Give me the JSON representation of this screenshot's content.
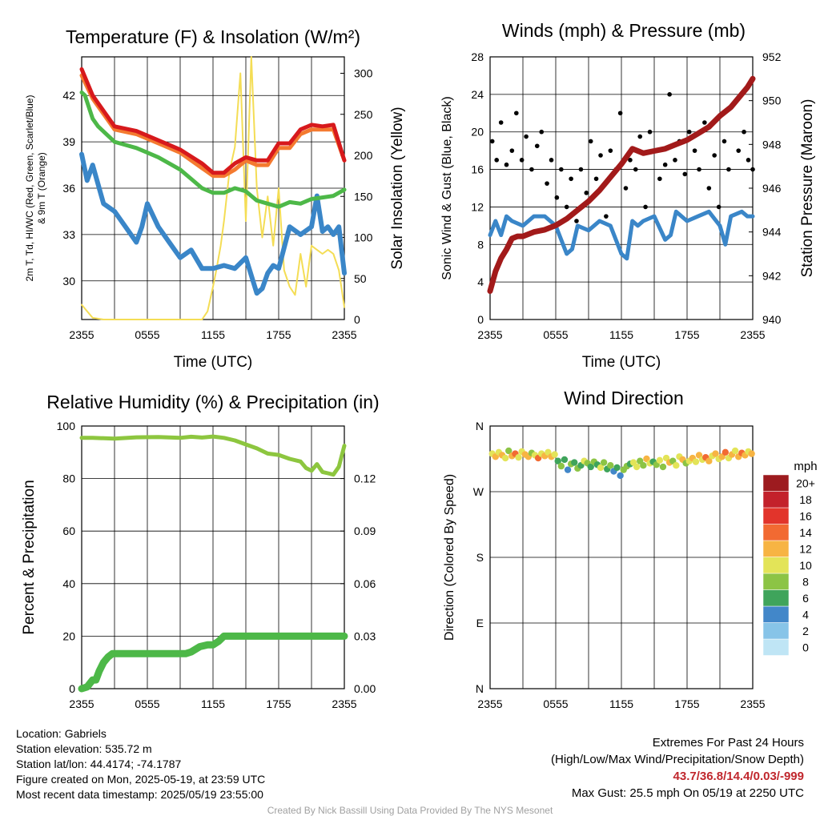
{
  "colors": {
    "red": "#d7191c",
    "orange": "#f47a30",
    "green": "#4db848",
    "blue": "#3a86c8",
    "yellow": "#f4dd55",
    "maroon": "#a21a1a",
    "black": "#000000",
    "rh": "#8dc63f",
    "precip": "#4db848"
  },
  "time_ticks": [
    "2355",
    "0555",
    "1155",
    "1755",
    "2355"
  ],
  "charts": {
    "temperature": {
      "type": "line",
      "title": "Temperature (F) & Insolation (W/m²)",
      "xlabel": "Time (UTC)",
      "ylabel_line1": "2m T, Td, HI/WC (Red, Green, Scarlet/Blue)",
      "ylabel_line2": "& 9m T (Orange)",
      "ylabel_right": "Solar Insolation (Yellow)",
      "ylim": [
        27.5,
        44.5
      ],
      "yticks": [
        30,
        33,
        36,
        39,
        42
      ],
      "ylim_right": [
        0,
        320
      ],
      "yticks_right": [
        0,
        50,
        100,
        150,
        200,
        250,
        300
      ],
      "series": [
        {
          "color": "yellow",
          "axis": "right",
          "x": [
            0,
            1,
            2,
            4,
            8,
            10,
            11,
            11.5,
            12,
            12.3,
            12.7,
            13,
            13.5,
            14,
            14.5,
            15,
            15.5,
            16,
            16.5,
            17,
            17.5,
            18,
            18.5,
            19,
            19.5,
            20,
            20.5,
            21,
            21.5,
            22,
            22.5,
            23,
            23.5,
            24
          ],
          "y": [
            18,
            2,
            0,
            0,
            0,
            0,
            0,
            10,
            40,
            60,
            90,
            120,
            180,
            210,
            300,
            120,
            320,
            160,
            100,
            150,
            90,
            160,
            60,
            40,
            30,
            80,
            40,
            90,
            85,
            80,
            85,
            80,
            60,
            15
          ]
        },
        {
          "color": "blue",
          "axis": "left",
          "x": [
            0,
            0.5,
            1,
            2,
            3,
            4,
            5,
            5.5,
            6,
            7,
            8,
            9,
            10,
            11,
            12,
            13,
            14,
            15,
            16,
            16.5,
            17,
            17.5,
            18,
            19,
            20,
            21,
            21.5,
            22,
            22.5,
            23,
            23.5,
            24
          ],
          "y": [
            38.2,
            36.5,
            37.5,
            35,
            34.5,
            33.5,
            32.5,
            33.5,
            35,
            33.5,
            32.5,
            31.5,
            32,
            30.8,
            30.8,
            31,
            30.8,
            31.5,
            29.2,
            29.5,
            30.5,
            31,
            30.8,
            33.5,
            33,
            33.5,
            35.5,
            33.2,
            33.5,
            33,
            33.5,
            30.5
          ]
        },
        {
          "color": "green",
          "axis": "left",
          "x": [
            0,
            0.3,
            1,
            1.5,
            3,
            4,
            5,
            6,
            7,
            8,
            9,
            10,
            11,
            12,
            13,
            14,
            15,
            16,
            17,
            18,
            19,
            20,
            21,
            22,
            23,
            24
          ],
          "y": [
            42.2,
            42.0,
            40.5,
            40.0,
            39.0,
            38.8,
            38.6,
            38.3,
            38.0,
            37.6,
            37.2,
            36.6,
            36.0,
            35.7,
            35.7,
            36.0,
            35.8,
            35.2,
            35.0,
            34.8,
            35.1,
            35.0,
            35.3,
            35.4,
            35.5,
            35.9
          ]
        },
        {
          "color": "orange",
          "axis": "left",
          "x": [
            0,
            1,
            3,
            5,
            7,
            9,
            11,
            12,
            13,
            14,
            15,
            16,
            17,
            18,
            19,
            20,
            21,
            22,
            23,
            24
          ],
          "y": [
            43.3,
            41.8,
            39.8,
            39.5,
            38.9,
            38.3,
            37.3,
            36.8,
            36.8,
            37.2,
            37.8,
            37.5,
            37.5,
            38.6,
            38.6,
            39.5,
            39.8,
            39.8,
            39.8,
            37.8
          ]
        },
        {
          "color": "red",
          "axis": "left",
          "x": [
            0,
            1,
            3,
            5,
            7,
            9,
            11,
            12,
            13,
            14,
            15,
            16,
            17,
            18,
            19,
            20,
            21,
            22,
            23,
            24
          ],
          "y": [
            43.7,
            42.0,
            40.0,
            39.7,
            39.1,
            38.5,
            37.6,
            37.0,
            37.0,
            37.6,
            38.0,
            37.8,
            37.8,
            38.9,
            38.9,
            39.8,
            40.1,
            40.0,
            40.1,
            37.8
          ]
        }
      ]
    },
    "winds": {
      "type": "scatter",
      "title": "Winds (mph) & Pressure (mb)",
      "xlabel": "Time (UTC)",
      "ylabel": "Sonic Wind & Gust (Blue, Black)",
      "ylabel_right": "Station Pressure (Maroon)",
      "ylim": [
        0,
        28
      ],
      "yticks": [
        0,
        4,
        8,
        12,
        16,
        20,
        24,
        28
      ],
      "ylim_right": [
        940,
        952
      ],
      "yticks_right": [
        940,
        942,
        944,
        946,
        948,
        950,
        952
      ],
      "wind": {
        "x": [
          0,
          0.5,
          1,
          1.5,
          2,
          3,
          4,
          5,
          6,
          7,
          7.5,
          8,
          9,
          10,
          11,
          12,
          12.5,
          13,
          13.5,
          14,
          15,
          16,
          16.5,
          17,
          18,
          19,
          20,
          21,
          21.5,
          22,
          23,
          23.5,
          24
        ],
        "y": [
          9,
          10.5,
          9,
          11,
          10.5,
          10,
          11,
          11,
          10,
          7,
          7.5,
          10,
          9.5,
          10.5,
          10,
          7,
          6.5,
          10.5,
          10,
          10.5,
          11,
          8.5,
          9,
          11.5,
          10.5,
          11,
          11.5,
          10,
          8,
          11,
          11.5,
          11,
          11
        ]
      },
      "gust": {
        "x": [
          0.2,
          0.6,
          1.0,
          1.5,
          2.0,
          2.4,
          2.9,
          3.3,
          3.8,
          4.3,
          4.7,
          5.2,
          5.6,
          6.1,
          6.5,
          7.0,
          7.4,
          7.9,
          8.3,
          8.8,
          9.2,
          9.7,
          10.1,
          10.6,
          11.0,
          11.5,
          11.9,
          12.4,
          12.8,
          13.3,
          13.7,
          14.2,
          14.6,
          15.1,
          15.5,
          16.0,
          16.4,
          16.9,
          17.3,
          17.8,
          18.2,
          18.7,
          19.1,
          19.6,
          20.0,
          20.5,
          20.9,
          21.4,
          21.8,
          22.3,
          22.7,
          23.2,
          23.6,
          24.0
        ],
        "y": [
          19,
          17,
          21,
          16.5,
          18,
          22,
          17,
          19.5,
          16,
          18.5,
          20,
          14.5,
          17,
          13,
          16,
          12,
          15,
          10.5,
          16,
          13.5,
          19,
          15,
          17.5,
          11,
          18,
          16,
          22,
          14,
          17,
          16,
          19.5,
          12,
          20,
          18,
          15,
          16.5,
          24,
          17,
          19,
          15.5,
          20,
          18,
          16,
          21,
          14,
          17.5,
          12,
          19,
          16,
          23,
          18,
          20,
          17,
          16
        ]
      },
      "pressure": {
        "x": [
          0,
          0.5,
          1,
          1.5,
          2,
          2.5,
          3,
          4,
          5,
          6,
          7,
          8,
          9,
          10,
          11,
          12,
          13,
          14,
          15,
          16,
          17,
          18,
          19,
          20,
          21,
          22,
          23,
          23.5,
          24
        ],
        "y": [
          941.3,
          942.2,
          942.8,
          943.2,
          943.7,
          943.8,
          943.8,
          944.0,
          944.1,
          944.3,
          944.6,
          945.0,
          945.4,
          945.9,
          946.5,
          947.1,
          947.8,
          947.6,
          947.7,
          947.8,
          948.0,
          948.2,
          948.5,
          948.8,
          949.3,
          949.7,
          950.3,
          950.6,
          951.0
        ]
      }
    },
    "humidity": {
      "type": "line",
      "title": "Relative Humidity (%) & Precipitation (in)",
      "ylabel": "Percent & Precipitation",
      "ylim": [
        0,
        100
      ],
      "yticks": [
        0,
        20,
        40,
        60,
        80,
        100
      ],
      "ylim_right": [
        0,
        0.15
      ],
      "yticks_right": [
        "0.00",
        "0.03",
        "0.06",
        "0.09",
        "0.12"
      ],
      "rh": {
        "x": [
          0,
          1,
          3,
          5,
          7,
          9,
          10,
          11,
          12,
          13,
          14,
          15,
          16,
          17,
          18,
          19,
          20,
          20.5,
          21,
          21.5,
          22,
          22.5,
          23,
          23.5,
          24
        ],
        "y": [
          95.5,
          95.5,
          95.2,
          95.7,
          95.8,
          95.5,
          95.9,
          95.6,
          96,
          95.5,
          94.5,
          93,
          91.5,
          89.5,
          89,
          87.5,
          86.5,
          84,
          83,
          85.5,
          82.5,
          82,
          81.5,
          84.5,
          92.5
        ]
      },
      "precip": {
        "x": [
          0,
          0.5,
          1,
          1.3,
          1.6,
          2,
          2.4,
          2.8,
          3.2,
          4,
          6,
          8,
          9.5,
          10,
          10.8,
          11.5,
          12,
          12.5,
          13,
          14,
          16,
          18,
          20,
          22,
          24
        ],
        "y": [
          0,
          0.001,
          0.005,
          0.005,
          0.01,
          0.015,
          0.018,
          0.02,
          0.02,
          0.02,
          0.02,
          0.02,
          0.02,
          0.021,
          0.024,
          0.025,
          0.025,
          0.027,
          0.03,
          0.03,
          0.03,
          0.03,
          0.03,
          0.03,
          0.03
        ]
      }
    },
    "direction": {
      "type": "scatter",
      "title": "Wind Direction",
      "ylabel": "Direction (Colored By Speed)",
      "ylim": [
        0,
        360
      ],
      "ytick_labels": [
        "N",
        "E",
        "S",
        "W",
        "N"
      ],
      "legend_title": "mph",
      "legend_labels": [
        "0",
        "2",
        "4",
        "6",
        "8",
        "10",
        "12",
        "14",
        "16",
        "18",
        "20+"
      ],
      "legend_colors": [
        "#bfe5f5",
        "#87c4e8",
        "#4287c9",
        "#3fa45b",
        "#8cc445",
        "#e3e458",
        "#f7b443",
        "#f26a32",
        "#e2342b",
        "#c3212b",
        "#9d1b1f"
      ],
      "points": {
        "x": [
          0.2,
          0.5,
          0.8,
          1.1,
          1.4,
          1.7,
          2.0,
          2.3,
          2.6,
          2.9,
          3.2,
          3.5,
          3.8,
          4.1,
          4.4,
          4.7,
          5.0,
          5.3,
          5.6,
          5.9,
          6.2,
          6.5,
          6.8,
          7.1,
          7.4,
          7.7,
          8.0,
          8.3,
          8.6,
          8.9,
          9.2,
          9.5,
          9.8,
          10.1,
          10.4,
          10.7,
          11.0,
          11.3,
          11.6,
          11.9,
          12.2,
          12.5,
          12.8,
          13.1,
          13.4,
          13.7,
          14.0,
          14.3,
          14.6,
          14.9,
          15.2,
          15.5,
          15.8,
          16.1,
          16.4,
          16.7,
          17.0,
          17.3,
          17.6,
          17.9,
          18.2,
          18.5,
          18.8,
          19.1,
          19.4,
          19.7,
          20.0,
          20.3,
          20.6,
          20.9,
          21.2,
          21.5,
          21.8,
          22.1,
          22.4,
          22.7,
          23.0,
          23.3,
          23.6,
          23.9
        ],
        "dir": [
          322,
          318,
          324,
          320,
          316,
          326,
          319,
          322,
          317,
          325,
          321,
          318,
          323,
          320,
          316,
          322,
          319,
          324,
          318,
          321,
          312,
          305,
          314,
          300,
          308,
          310,
          302,
          306,
          312,
          309,
          304,
          311,
          307,
          303,
          310,
          301,
          306,
          298,
          303,
          292,
          300,
          305,
          308,
          310,
          304,
          312,
          306,
          315,
          309,
          311,
          307,
          313,
          304,
          316,
          310,
          312,
          306,
          318,
          314,
          309,
          312,
          316,
          311,
          320,
          314,
          317,
          312,
          319,
          322,
          315,
          318,
          324,
          316,
          321,
          326,
          318,
          323,
          320,
          325,
          322
        ],
        "speed": [
          10,
          11,
          9,
          12,
          10,
          8,
          11,
          13,
          10,
          9,
          12,
          11,
          8,
          10,
          13,
          9,
          11,
          10,
          12,
          9,
          6,
          7,
          5,
          4,
          7,
          6,
          8,
          6,
          9,
          7,
          5,
          8,
          6,
          10,
          7,
          5,
          8,
          4,
          6,
          3,
          7,
          8,
          6,
          9,
          10,
          7,
          8,
          11,
          9,
          6,
          8,
          10,
          7,
          9,
          11,
          8,
          10,
          9,
          12,
          8,
          10,
          11,
          9,
          12,
          10,
          13,
          11,
          9,
          12,
          10,
          11,
          13,
          9,
          12,
          10,
          11,
          13,
          12,
          10,
          11
        ]
      }
    }
  },
  "info": {
    "location": "Location: Gabriels",
    "elevation": "Station elevation: 535.72 m",
    "latlon": "Station lat/lon: 44.4174; -74.1787",
    "created": "Figure created on Mon, 2025-05-19, at 23:59 UTC",
    "recent": "Most recent data timestamp: 2025/05/19 23:55:00"
  },
  "extremes": {
    "heading": "Extremes For Past 24 Hours",
    "subheading": "(High/Low/Max Wind/Precipitation/Snow Depth)",
    "values": "43.7/36.8/14.4/0.03/-999",
    "gust": "Max Gust: 25.5 mph On 05/19 at 2250 UTC"
  },
  "credit": "Created By Nick Bassill Using Data Provided By The NYS Mesonet"
}
